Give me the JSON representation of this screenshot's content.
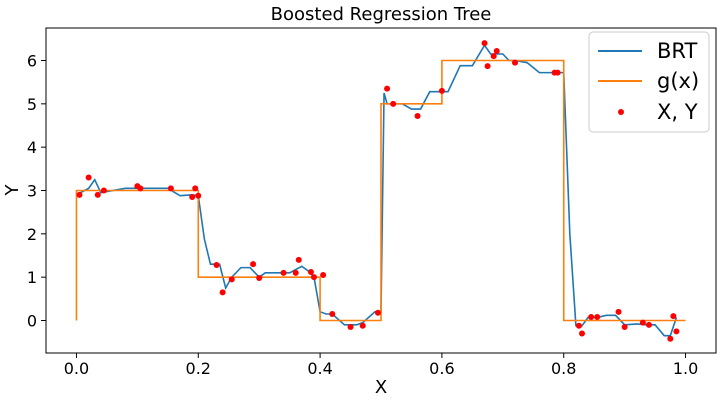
{
  "chart_data": {
    "type": "line",
    "title": "Boosted Regression Tree",
    "xlabel": "X",
    "ylabel": "Y",
    "xlim": [
      -0.05,
      1.05
    ],
    "ylim": [
      -0.75,
      6.75
    ],
    "xticks": [
      0.0,
      0.2,
      0.4,
      0.6,
      0.8,
      1.0
    ],
    "xtick_labels": [
      "0.0",
      "0.2",
      "0.4",
      "0.6",
      "0.8",
      "1.0"
    ],
    "yticks": [
      0,
      1,
      2,
      3,
      4,
      5,
      6
    ],
    "ytick_labels": [
      "0",
      "1",
      "2",
      "3",
      "4",
      "5",
      "6"
    ],
    "grid": false,
    "legend_position": "top-right",
    "series": [
      {
        "name": "BRT",
        "kind": "line",
        "color": "#1f77b4",
        "x": [
          0.0,
          0.02,
          0.03,
          0.04,
          0.06,
          0.08,
          0.1,
          0.12,
          0.15,
          0.17,
          0.19,
          0.2,
          0.21,
          0.22,
          0.235,
          0.245,
          0.255,
          0.27,
          0.285,
          0.3,
          0.31,
          0.33,
          0.35,
          0.37,
          0.38,
          0.39,
          0.4,
          0.41,
          0.42,
          0.44,
          0.46,
          0.47,
          0.49,
          0.5,
          0.505,
          0.51,
          0.52,
          0.535,
          0.55,
          0.565,
          0.58,
          0.59,
          0.6,
          0.61,
          0.63,
          0.65,
          0.67,
          0.68,
          0.69,
          0.7,
          0.71,
          0.72,
          0.74,
          0.76,
          0.78,
          0.795,
          0.8,
          0.81,
          0.82,
          0.83,
          0.84,
          0.855,
          0.87,
          0.885,
          0.9,
          0.92,
          0.935,
          0.95,
          0.965,
          0.975,
          0.985
        ],
        "values": [
          2.9,
          3.05,
          3.25,
          2.95,
          3.0,
          3.05,
          3.05,
          3.05,
          3.05,
          2.88,
          2.9,
          2.88,
          1.88,
          1.3,
          1.3,
          0.75,
          1.0,
          1.22,
          1.22,
          1.0,
          1.1,
          1.1,
          1.1,
          1.25,
          1.15,
          1.0,
          0.2,
          0.15,
          0.15,
          -0.1,
          -0.1,
          -0.05,
          0.2,
          0.2,
          5.25,
          5.0,
          5.0,
          5.0,
          4.88,
          4.88,
          5.28,
          5.28,
          5.28,
          5.28,
          5.88,
          5.88,
          6.35,
          6.15,
          6.15,
          6.15,
          6.0,
          6.0,
          5.95,
          5.72,
          5.72,
          5.72,
          5.72,
          2.0,
          -0.12,
          -0.12,
          0.07,
          0.07,
          0.12,
          0.12,
          -0.1,
          -0.08,
          -0.1,
          -0.1,
          -0.35,
          -0.35,
          0.07
        ]
      },
      {
        "name": "g(x)",
        "kind": "step",
        "color": "#ff7f0e",
        "x": [
          0.0,
          0.0,
          0.2,
          0.2,
          0.4,
          0.4,
          0.5,
          0.5,
          0.6,
          0.6,
          0.8,
          0.8,
          1.0
        ],
        "values": [
          0,
          3,
          3,
          1,
          1,
          0,
          0,
          5,
          5,
          6,
          6,
          0,
          0
        ]
      },
      {
        "name": "X, Y",
        "kind": "scatter",
        "color": "#ff0000",
        "x": [
          0.005,
          0.02,
          0.035,
          0.045,
          0.1,
          0.105,
          0.155,
          0.19,
          0.195,
          0.2,
          0.23,
          0.24,
          0.255,
          0.29,
          0.3,
          0.34,
          0.36,
          0.365,
          0.385,
          0.39,
          0.405,
          0.42,
          0.45,
          0.47,
          0.495,
          0.51,
          0.52,
          0.56,
          0.6,
          0.67,
          0.675,
          0.685,
          0.69,
          0.72,
          0.785,
          0.79,
          0.825,
          0.83,
          0.845,
          0.855,
          0.89,
          0.9,
          0.93,
          0.94,
          0.975,
          0.98,
          0.985
        ],
        "values": [
          2.9,
          3.3,
          2.9,
          3.0,
          3.1,
          3.05,
          3.05,
          2.85,
          3.05,
          2.88,
          1.28,
          0.65,
          0.95,
          1.3,
          0.98,
          1.1,
          1.1,
          1.4,
          1.12,
          1.0,
          1.05,
          0.15,
          -0.15,
          -0.12,
          0.18,
          5.35,
          5.0,
          4.72,
          5.3,
          6.4,
          5.87,
          6.1,
          6.22,
          5.95,
          5.72,
          5.72,
          -0.12,
          -0.3,
          0.08,
          0.08,
          0.2,
          -0.15,
          -0.05,
          -0.1,
          -0.42,
          0.1,
          -0.25
        ]
      }
    ]
  }
}
